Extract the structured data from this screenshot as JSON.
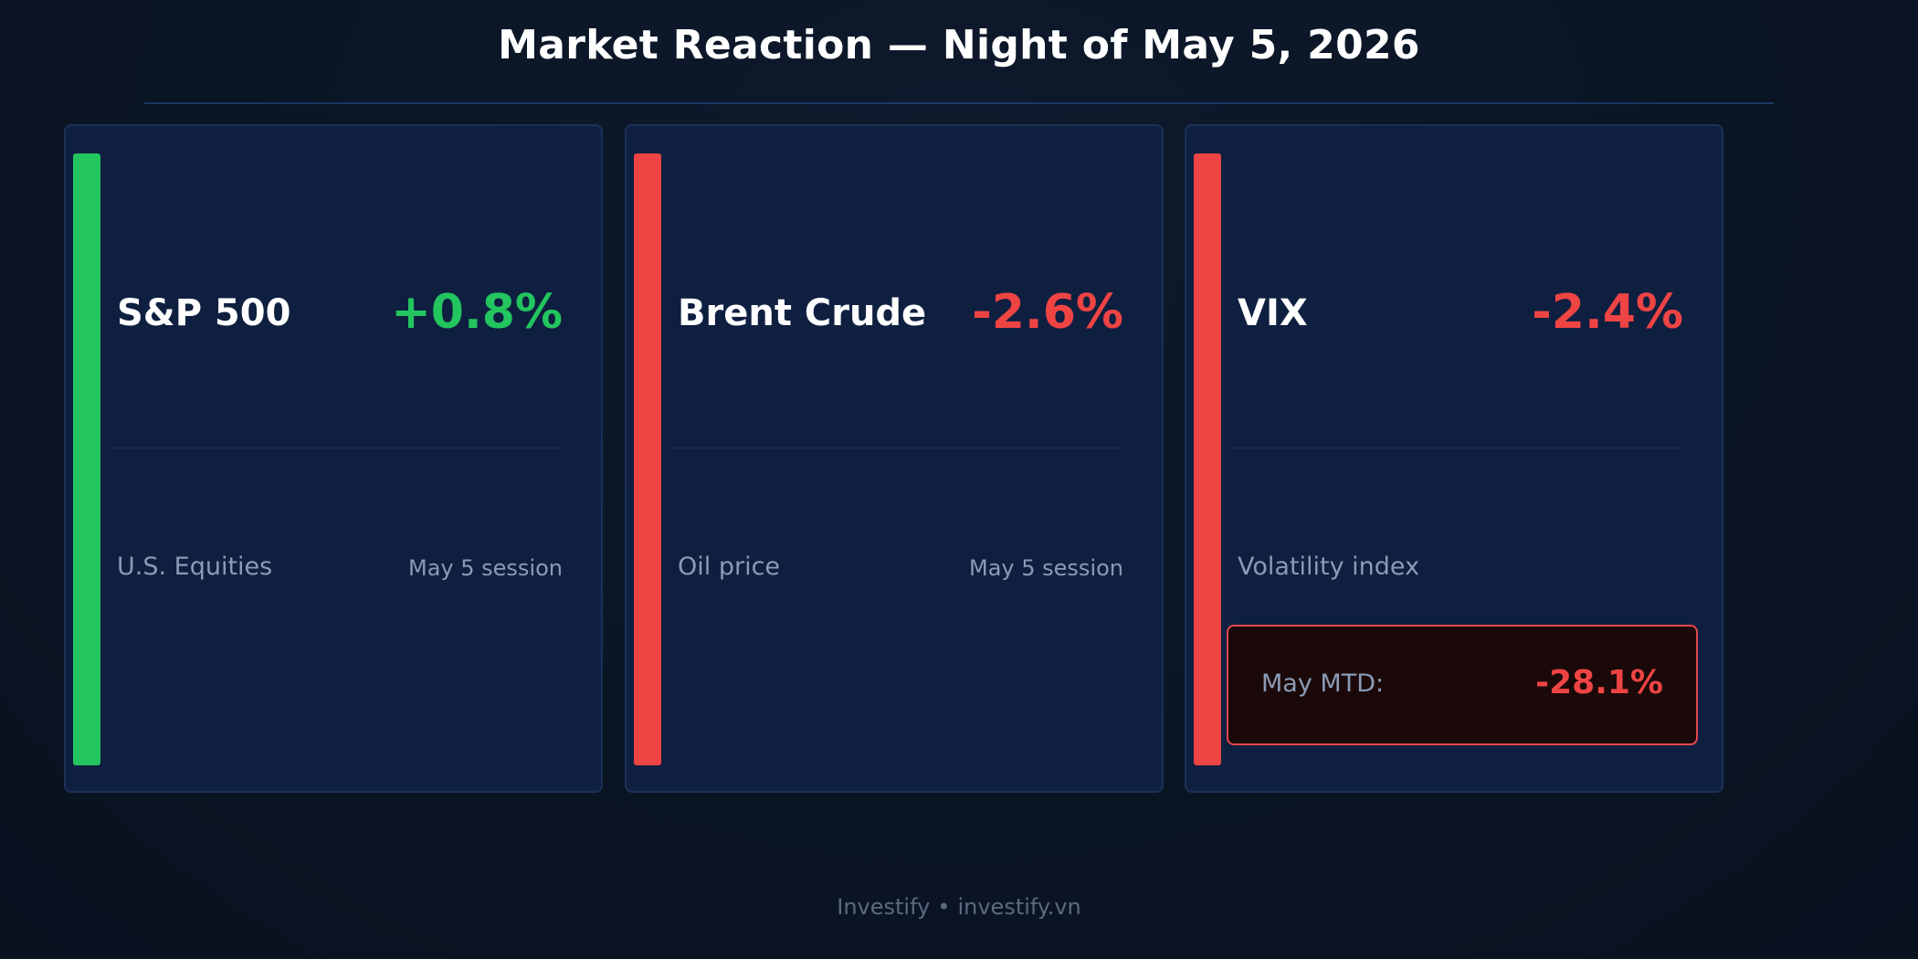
{
  "title": "Market Reaction — Night of May 5, 2026",
  "colors": {
    "up": "#22c55e",
    "down": "#ef4444"
  },
  "cards": [
    {
      "name": "S&P 500",
      "change": "+0.8%",
      "direction": "up",
      "subtitle": "U.S. Equities",
      "session": "May 5 session"
    },
    {
      "name": "Brent Crude",
      "change": "-2.6%",
      "direction": "down",
      "subtitle": "Oil price",
      "session": "May 5 session"
    },
    {
      "name": "VIX",
      "change": "-2.4%",
      "direction": "down",
      "subtitle": "Volatility index",
      "mtd": {
        "label": "May MTD:",
        "value": "-28.1%",
        "direction": "down"
      }
    }
  ],
  "footer": {
    "brand": "Investify",
    "separator": "•",
    "url": "investify.vn"
  }
}
